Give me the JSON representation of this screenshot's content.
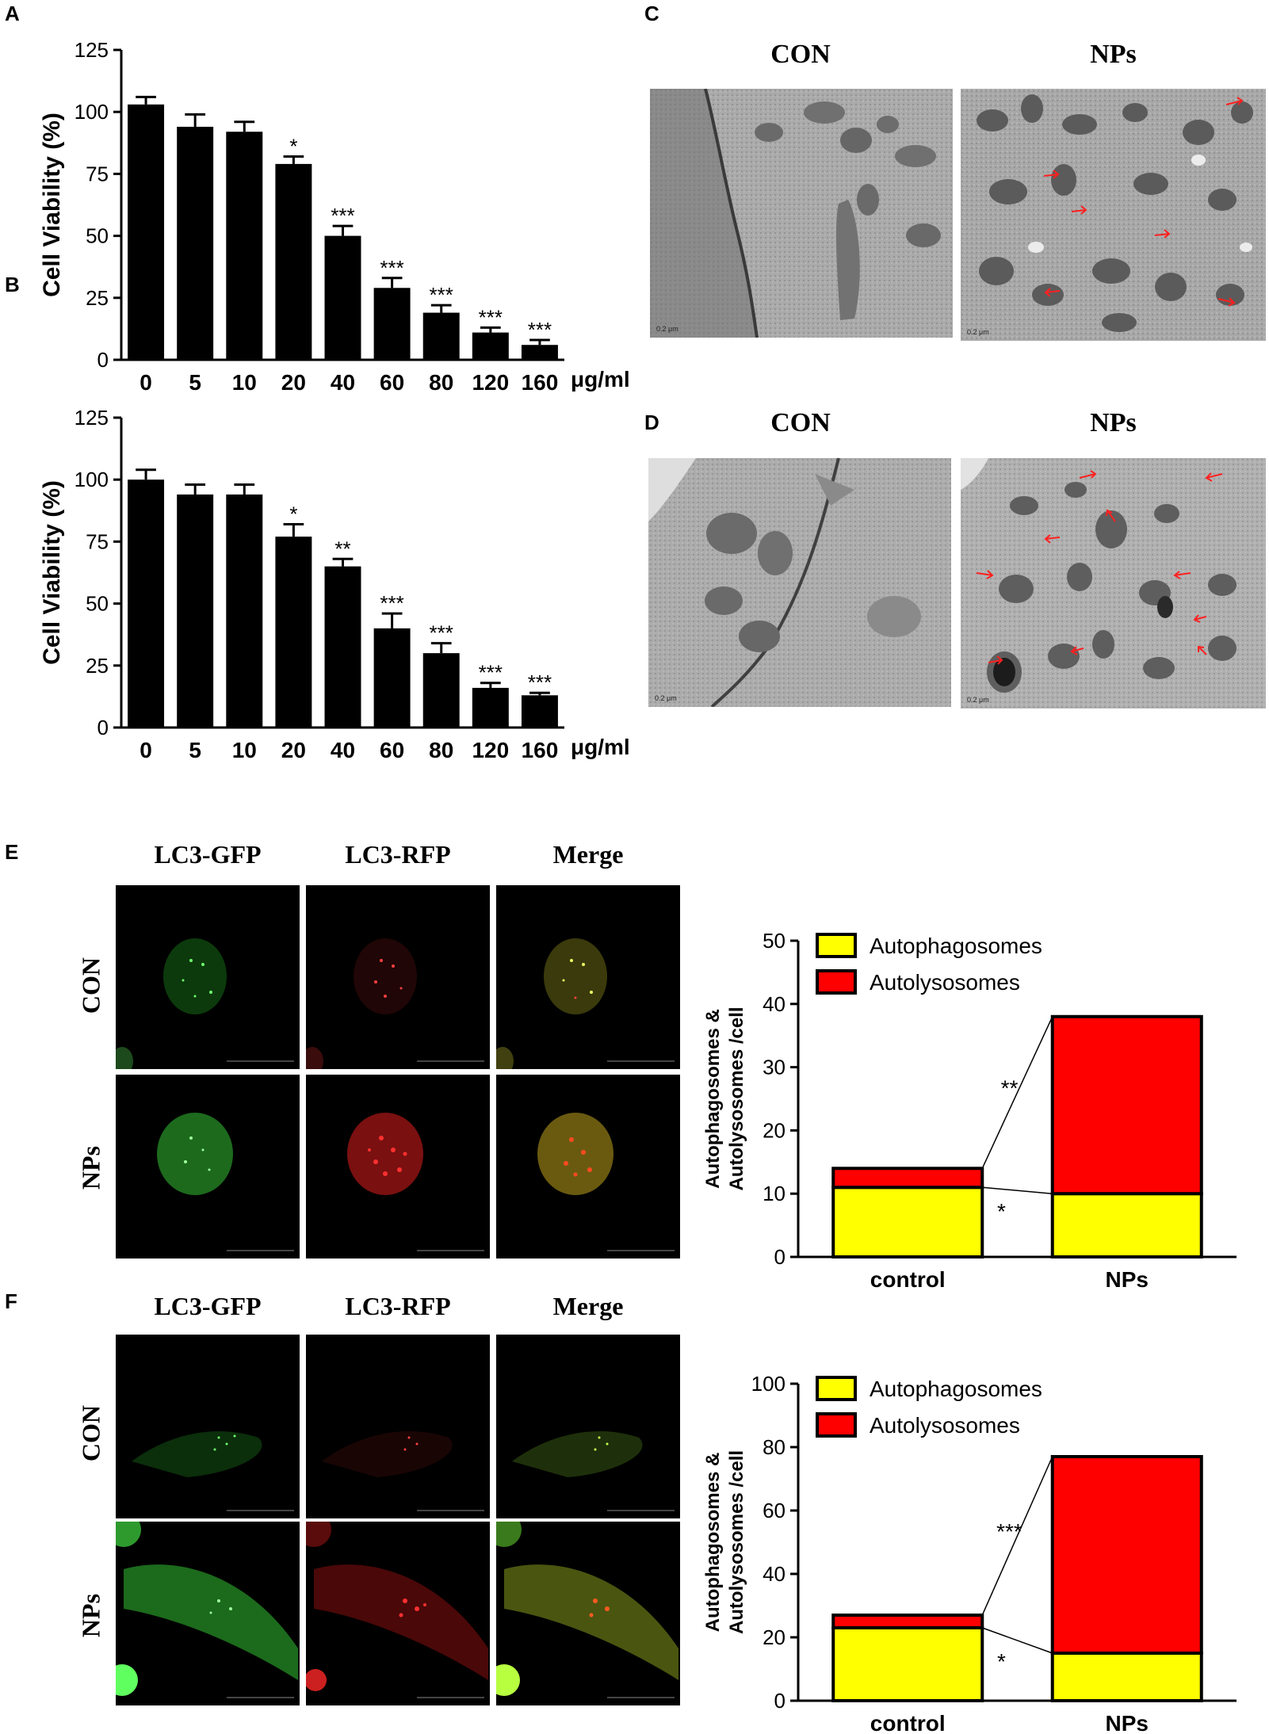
{
  "panels": {
    "A": "A",
    "B": "B",
    "C": "C",
    "D": "D",
    "E": "E",
    "F": "F"
  },
  "em": {
    "C": {
      "left_title": "CON",
      "right_title": "NPs"
    },
    "D": {
      "left_title": "CON",
      "right_title": "NPs"
    }
  },
  "fluor": {
    "E": {
      "col_titles": [
        "LC3-GFP",
        "LC3-RFP",
        "Merge"
      ],
      "row_labels": [
        "CON",
        "NPs"
      ]
    },
    "F": {
      "col_titles": [
        "LC3-GFP",
        "LC3-RFP",
        "Merge"
      ],
      "row_labels": [
        "CON",
        "NPs"
      ]
    }
  },
  "chart_data": [
    {
      "panel": "A",
      "type": "bar",
      "categories": [
        "0",
        "5",
        "10",
        "20",
        "40",
        "60",
        "80",
        "120",
        "160"
      ],
      "values": [
        103,
        94,
        92,
        79,
        50,
        29,
        19,
        11,
        6
      ],
      "errors": [
        3,
        5,
        4,
        3,
        4,
        4,
        3,
        2,
        2
      ],
      "significance": [
        "",
        "",
        "",
        "*",
        "***",
        "***",
        "***",
        "***",
        "***"
      ],
      "ylabel": "Cell Viability (%)",
      "xunit": "μg/ml",
      "ylim": [
        0,
        125
      ],
      "yticks": [
        0,
        25,
        50,
        75,
        100,
        125
      ],
      "bar_color": "#000000"
    },
    {
      "panel": "B",
      "type": "bar",
      "categories": [
        "0",
        "5",
        "10",
        "20",
        "40",
        "60",
        "80",
        "120",
        "160"
      ],
      "values": [
        100,
        94,
        94,
        77,
        65,
        40,
        30,
        16,
        13
      ],
      "errors": [
        4,
        4,
        4,
        5,
        3,
        6,
        4,
        2,
        1
      ],
      "significance": [
        "",
        "",
        "",
        "*",
        "**",
        "***",
        "***",
        "***",
        "***"
      ],
      "ylabel": "Cell Viability (%)",
      "xunit": "μg/ml",
      "ylim": [
        0,
        125
      ],
      "yticks": [
        0,
        25,
        50,
        75,
        100,
        125
      ],
      "bar_color": "#000000"
    },
    {
      "panel": "E",
      "type": "bar",
      "stacked": true,
      "categories": [
        "control",
        "NPs"
      ],
      "series": [
        {
          "name": "Autophagosomes",
          "values": [
            11,
            10
          ],
          "color": "#ffff00"
        },
        {
          "name": "Autolysosomes",
          "values": [
            3,
            28
          ],
          "color": "#ff0000"
        }
      ],
      "ylabel": "Autophagosomes &\nAutolysosomes /cell",
      "ylim": [
        0,
        50
      ],
      "yticks": [
        0,
        10,
        20,
        30,
        40,
        50
      ],
      "significance": {
        "autolysosomes": "**",
        "autophagosomes": "*"
      },
      "legend": "top-left"
    },
    {
      "panel": "F",
      "type": "bar",
      "stacked": true,
      "categories": [
        "control",
        "NPs"
      ],
      "series": [
        {
          "name": "Autophagosomes",
          "values": [
            23,
            15
          ],
          "color": "#ffff00"
        },
        {
          "name": "Autolysosomes",
          "values": [
            4,
            62
          ],
          "color": "#ff0000"
        }
      ],
      "ylabel": "Autophagosomes &\nAutolysosomes /cell",
      "ylim": [
        0,
        100
      ],
      "yticks": [
        0,
        20,
        40,
        60,
        80,
        100
      ],
      "significance": {
        "autolysosomes": "***",
        "autophagosomes": "*"
      },
      "legend": "top-left"
    }
  ]
}
